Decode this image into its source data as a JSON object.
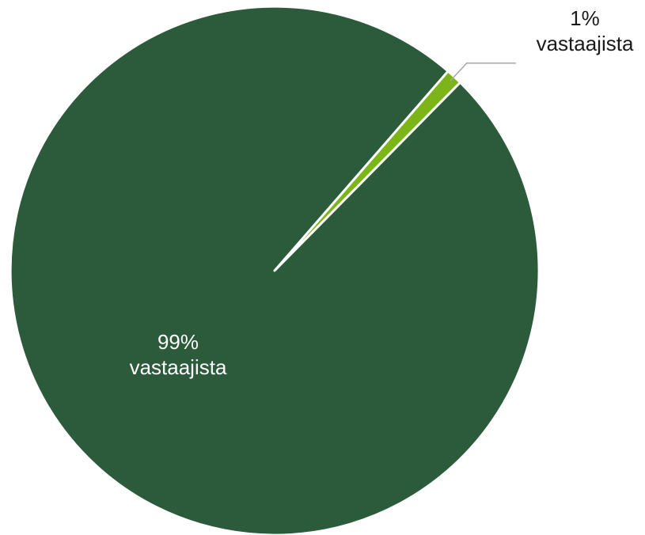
{
  "chart_data": {
    "type": "pie",
    "start_angle_deg": 41,
    "direction": "clockwise",
    "slices": [
      {
        "value": 1,
        "label_value": "1%",
        "label_text": "vastaajista",
        "color": "#7CB518",
        "label_position": "outside",
        "label_color": "#1a1a1a"
      },
      {
        "value": 99,
        "label_value": "99%",
        "label_text": "vastaajista",
        "color": "#2B5B3A",
        "label_position": "inside",
        "label_color": "#ffffff"
      }
    ]
  }
}
